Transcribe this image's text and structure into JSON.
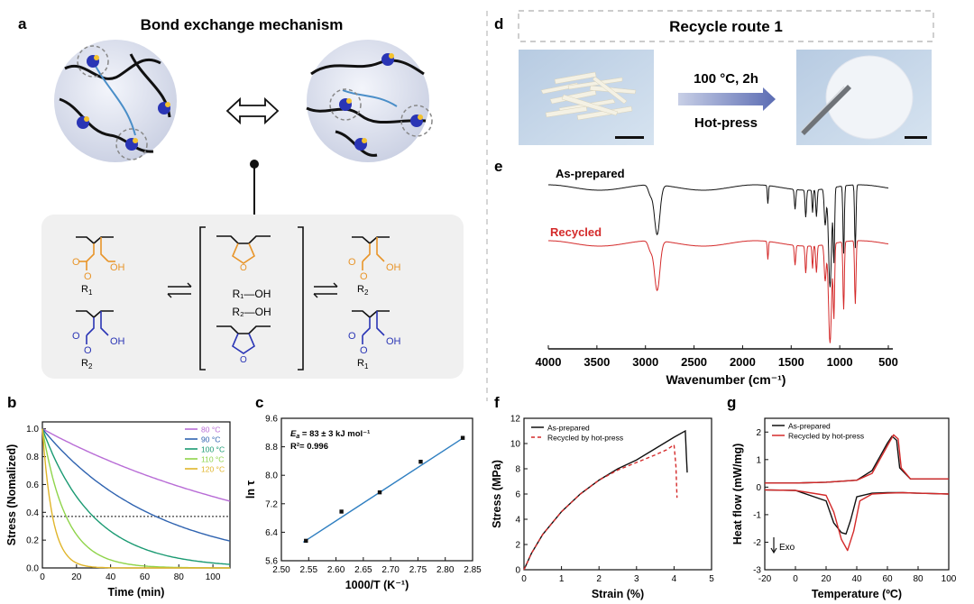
{
  "panel_letters": {
    "a": "a",
    "b": "b",
    "c": "c",
    "d": "d",
    "e": "e",
    "f": "f",
    "g": "g"
  },
  "panel_a": {
    "title": "Bond exchange mechanism",
    "reactions": {
      "left_top_ester_r": "R",
      "left_top_ester_sub": "1",
      "left_top_acid": "OH",
      "left_top_o": "O",
      "left_bottom_ester_r": "R",
      "left_bottom_ester_sub": "2",
      "left_bottom_acid": "OH",
      "left_bottom_o": "O",
      "mid_alcohol_1": "R₁—OH",
      "mid_alcohol_2": "R₂—OH",
      "right_top_ester_r": "R",
      "right_top_ester_sub": "2",
      "right_top_acid": "OH",
      "right_top_o": "O",
      "right_bottom_ester_r": "R",
      "right_bottom_ester_sub": "1",
      "right_bottom_acid": "OH",
      "right_bottom_o": "O",
      "anhydride_o": "O"
    },
    "colors": {
      "orange": "#e8952a",
      "blue": "#2a35b5",
      "chain": "#111111",
      "light_chain": "#4a8ec8"
    }
  },
  "panel_d": {
    "title": "Recycle route 1",
    "condition_1": "100 °C, 2h",
    "condition_2": "Hot-press"
  },
  "panel_e": {
    "label_as_prepared": "As-prepared",
    "label_recycled": "Recycled",
    "xlabel": "Wavenumber (cm⁻¹)",
    "xticks": [
      "4000",
      "3500",
      "3000",
      "2500",
      "2000",
      "1500",
      "1000",
      "500"
    ]
  },
  "chart_data": [
    {
      "id": "b",
      "type": "line",
      "xlabel": "Time (min)",
      "ylabel": "Stress (Nomalized)",
      "xlim": [
        0,
        110
      ],
      "ylim": [
        0,
        1.05
      ],
      "xticks": [
        "0",
        "20",
        "40",
        "60",
        "80",
        "100"
      ],
      "yticks": [
        "0.0",
        "0.2",
        "0.4",
        "0.6",
        "0.8",
        "1.0"
      ],
      "dashed_line_y": 0.37,
      "legend_position": "top-right",
      "series": [
        {
          "name": "80 °C",
          "color": "#b86cd6",
          "tau": 150
        },
        {
          "name": "90 °C",
          "color": "#2f63b0",
          "tau": 67
        },
        {
          "name": "100 °C",
          "color": "#1a9a72",
          "tau": 30
        },
        {
          "name": "110 °C",
          "color": "#8fd44a",
          "tau": 14
        },
        {
          "name": "120 °C",
          "color": "#e0b52a",
          "tau": 6
        }
      ]
    },
    {
      "id": "c",
      "type": "scatter",
      "xlabel": "1000/T (K⁻¹)",
      "ylabel": "ln τ",
      "xlim": [
        2.5,
        2.85
      ],
      "ylim": [
        5.6,
        9.6
      ],
      "xticks": [
        "2.50",
        "2.55",
        "2.60",
        "2.65",
        "2.70",
        "2.75",
        "2.80",
        "2.85"
      ],
      "yticks": [
        "5.6",
        "6.4",
        "7.2",
        "8.0",
        "8.8",
        "9.6"
      ],
      "annotation_ea_symbol": "E",
      "annotation_ea_sub": "a",
      "annotation_ea_value": " = 83 ± 3 kJ mol⁻¹",
      "annotation_r2": "R²= 0.996",
      "points": [
        {
          "x": 2.545,
          "y": 6.16
        },
        {
          "x": 2.61,
          "y": 6.98
        },
        {
          "x": 2.68,
          "y": 7.52
        },
        {
          "x": 2.755,
          "y": 8.38
        },
        {
          "x": 2.832,
          "y": 9.05
        }
      ],
      "fit": {
        "x": [
          2.54,
          2.835
        ],
        "y": [
          6.12,
          9.07
        ],
        "color": "#2f7fc1"
      }
    },
    {
      "id": "f",
      "type": "line",
      "xlabel": "Strain (%)",
      "ylabel": "Stress (MPa)",
      "xlim": [
        0,
        5
      ],
      "ylim": [
        0,
        12
      ],
      "xticks": [
        "0",
        "1",
        "2",
        "3",
        "4",
        "5"
      ],
      "yticks": [
        "0",
        "2",
        "4",
        "6",
        "8",
        "10",
        "12"
      ],
      "legend_position": "top-left",
      "series": [
        {
          "name": "As-prepared",
          "color": "#111111",
          "dash": "",
          "x": [
            0,
            0.2,
            0.5,
            1.0,
            1.5,
            2.0,
            2.5,
            3.0,
            3.5,
            4.0,
            4.3,
            4.33,
            4.35
          ],
          "y": [
            0,
            1.3,
            2.8,
            4.6,
            6.0,
            7.1,
            8.0,
            8.7,
            9.6,
            10.5,
            11.0,
            9.0,
            7.7
          ]
        },
        {
          "name": "Recycled by hot-press",
          "color": "#d42a2a",
          "dash": "4,3",
          "x": [
            0,
            0.2,
            0.5,
            1.0,
            1.5,
            2.0,
            2.5,
            3.0,
            3.5,
            3.8,
            4.0,
            4.05,
            4.07,
            4.08
          ],
          "y": [
            0,
            1.3,
            2.8,
            4.6,
            6.0,
            7.1,
            7.9,
            8.5,
            9.1,
            9.5,
            9.9,
            8.2,
            6.5,
            5.7
          ]
        }
      ]
    },
    {
      "id": "g",
      "type": "line",
      "xlabel": "Temperature (ºC)",
      "ylabel": "Heat flow (mW/mg)",
      "xlim": [
        -20,
        100
      ],
      "ylim": [
        -3,
        2.5
      ],
      "xticks": [
        "-20",
        "0",
        "20",
        "40",
        "60",
        "80",
        "100"
      ],
      "yticks": [
        "-3",
        "-2",
        "-1",
        "0",
        "1",
        "2"
      ],
      "exo_label": "Exo",
      "legend_position": "top-left",
      "series": [
        {
          "name": "As-prepared",
          "color": "#111111",
          "x": [
            -20,
            0,
            20,
            25,
            30,
            33,
            36,
            40,
            50,
            60,
            70,
            80,
            100
          ],
          "y": [
            -0.1,
            -0.12,
            -0.5,
            -1.3,
            -1.65,
            -1.7,
            -1.2,
            -0.35,
            -0.22,
            -0.2,
            -0.2,
            -0.22,
            -0.25
          ],
          "x2": [
            -20,
            0,
            20,
            40,
            50,
            55,
            60,
            63,
            66,
            68,
            75,
            100
          ],
          "y2": [
            0.15,
            0.15,
            0.18,
            0.25,
            0.6,
            1.1,
            1.6,
            1.85,
            1.7,
            0.7,
            0.3,
            0.3
          ]
        },
        {
          "name": "Recycled by hot-press",
          "color": "#d42a2a",
          "x": [
            -20,
            0,
            20,
            25,
            30,
            34,
            38,
            42,
            50,
            60,
            70,
            80,
            100
          ],
          "y": [
            -0.1,
            -0.12,
            -0.3,
            -0.9,
            -1.9,
            -2.3,
            -1.6,
            -0.5,
            -0.25,
            -0.22,
            -0.2,
            -0.22,
            -0.25
          ],
          "x2": [
            -20,
            0,
            20,
            40,
            50,
            55,
            60,
            64,
            67,
            69,
            75,
            100
          ],
          "y2": [
            0.15,
            0.15,
            0.18,
            0.25,
            0.5,
            1.0,
            1.5,
            1.9,
            1.75,
            0.7,
            0.3,
            0.3
          ]
        }
      ]
    }
  ]
}
